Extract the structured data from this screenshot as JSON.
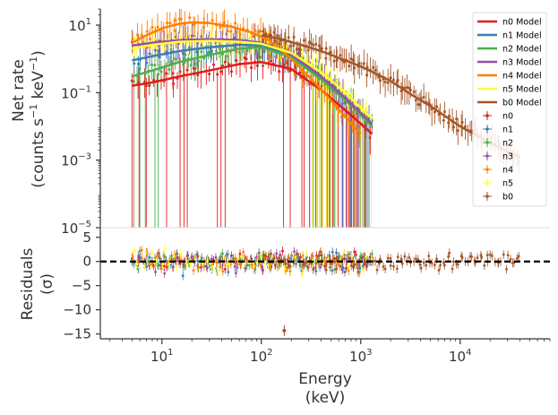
{
  "chart_data": [
    {
      "panel": "spectrum",
      "type": "scatter",
      "ylabel_line1": "Net rate",
      "ylabel_line2_prefix": "(counts s",
      "ylabel_line2_mid": " keV",
      "ylabel_line2_suffix": ")",
      "ylabel_exponent": "−1",
      "xscale": "log",
      "yscale": "log",
      "xlim": [
        2.4,
        80000
      ],
      "ylim": [
        1e-05,
        30
      ],
      "yticks": [
        1e-05,
        0.001,
        0.1,
        10
      ],
      "ytick_labels": [
        {
          "base": "10",
          "exp": "−5"
        },
        {
          "base": "10",
          "exp": "−3"
        },
        {
          "base": "10",
          "exp": "−1"
        },
        {
          "base": "10",
          "exp": "1"
        }
      ],
      "legend_position": "top-right",
      "series": [
        {
          "name": "n0 Model",
          "kind": "model",
          "color": "#e41a1c",
          "x": [
            5,
            8,
            15,
            30,
            60,
            100,
            200,
            400,
            700,
            1000,
            1300
          ],
          "y": [
            0.16,
            0.2,
            0.3,
            0.45,
            0.7,
            0.8,
            0.5,
            0.12,
            0.03,
            0.012,
            0.006
          ]
        },
        {
          "name": "n1 Model",
          "kind": "model",
          "color": "#377eb8",
          "x": [
            5,
            8,
            15,
            30,
            60,
            100,
            200,
            400,
            700,
            1000,
            1300
          ],
          "y": [
            0.9,
            1.2,
            1.7,
            2.2,
            2.6,
            2.5,
            1.2,
            0.25,
            0.06,
            0.022,
            0.011
          ]
        },
        {
          "name": "n2 Model",
          "kind": "model",
          "color": "#4daf4a",
          "x": [
            5,
            8,
            15,
            30,
            60,
            100,
            200,
            400,
            700,
            1000,
            1300
          ],
          "y": [
            0.3,
            0.45,
            0.8,
            1.3,
            2.0,
            2.2,
            1.1,
            0.25,
            0.06,
            0.022,
            0.01
          ]
        },
        {
          "name": "n3 Model",
          "kind": "model",
          "color": "#984ea3",
          "x": [
            5,
            8,
            15,
            30,
            60,
            100,
            200,
            400,
            700,
            1000,
            1300
          ],
          "y": [
            2.5,
            3.0,
            3.6,
            3.8,
            3.6,
            3.0,
            1.4,
            0.3,
            0.07,
            0.025,
            0.012
          ]
        },
        {
          "name": "n4 Model",
          "kind": "model",
          "color": "#ff7f00",
          "x": [
            5,
            7,
            10,
            15,
            20,
            30,
            50,
            80,
            120,
            200,
            300,
            500,
            800,
            1000
          ],
          "y": [
            3.0,
            5.0,
            8.0,
            11.0,
            12.0,
            11.5,
            9.0,
            6.0,
            3.5,
            1.0,
            0.3,
            0.06,
            0.012,
            0.006
          ]
        },
        {
          "name": "n5 Model",
          "kind": "model",
          "color": "#ffff33",
          "x": [
            5,
            8,
            15,
            30,
            60,
            100,
            200,
            400,
            700,
            1000,
            1300
          ],
          "y": [
            2.0,
            2.6,
            3.2,
            3.4,
            3.2,
            2.8,
            1.5,
            0.4,
            0.1,
            0.035,
            0.017
          ]
        },
        {
          "name": "b0 Model",
          "kind": "model",
          "color": "#a65628",
          "x": [
            100,
            150,
            250,
            400,
            700,
            1000,
            2000,
            3000,
            5000,
            10000,
            20000,
            40000
          ],
          "y": [
            5.0,
            4.0,
            2.6,
            1.7,
            0.9,
            0.6,
            0.22,
            0.1,
            0.04,
            0.01,
            0.0032,
            0.0012
          ]
        },
        {
          "name": "n0",
          "kind": "data",
          "color": "#e41a1c"
        },
        {
          "name": "n1",
          "kind": "data",
          "color": "#377eb8"
        },
        {
          "name": "n2",
          "kind": "data",
          "color": "#4daf4a"
        },
        {
          "name": "n3",
          "kind": "data",
          "color": "#984ea3"
        },
        {
          "name": "n4",
          "kind": "data",
          "color": "#ff7f00"
        },
        {
          "name": "n5",
          "kind": "data",
          "color": "#ffff33"
        },
        {
          "name": "b0",
          "kind": "data",
          "color": "#a65628"
        }
      ]
    },
    {
      "panel": "residuals",
      "type": "scatter",
      "ylabel_line1": "Residuals",
      "ylabel_line2": "(σ)",
      "xlabel_line1": "Energy",
      "xlabel_line2": "(keV)",
      "xscale": "log",
      "xlim": [
        2.4,
        80000
      ],
      "ylim": [
        -16,
        7
      ],
      "yticks": [
        5,
        0,
        -5,
        -10,
        -15
      ],
      "ytick_labels": [
        "5",
        "0",
        "−5",
        "−10",
        "−15"
      ],
      "xticks": [
        10,
        100,
        1000,
        10000
      ],
      "xtick_labels": [
        {
          "base": "10",
          "exp": "1"
        },
        {
          "base": "10",
          "exp": "2"
        },
        {
          "base": "10",
          "exp": "3"
        },
        {
          "base": "10",
          "exp": "4"
        }
      ],
      "zero_line": {
        "value": 0,
        "style": "dashed",
        "color": "#000000"
      },
      "outlier": {
        "series": "b0",
        "x": 170,
        "y": -14.3
      }
    }
  ]
}
